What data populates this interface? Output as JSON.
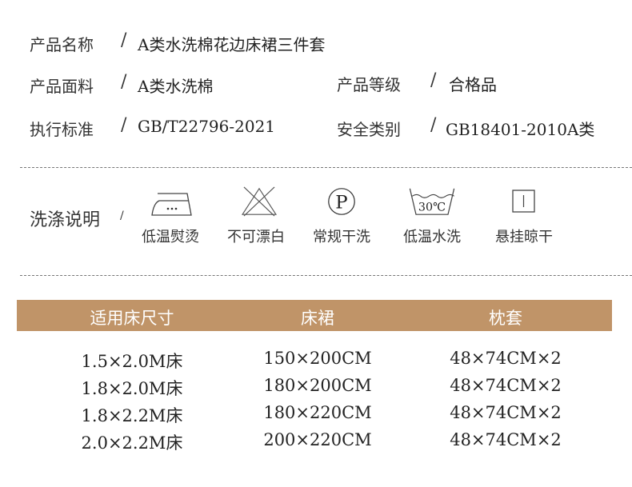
{
  "specs": [
    {
      "label": "产品名称",
      "value": "A类水洗棉花边床裙三件套"
    },
    {
      "label": "产品面料",
      "value": "A类水洗棉"
    },
    {
      "label": "产品等级",
      "value": "合格品"
    },
    {
      "label": "执行标准",
      "value": "GB/T22796-2021"
    },
    {
      "label": "安全类别",
      "value": "GB18401-2010A类"
    }
  ],
  "separator": "/",
  "care": {
    "title": "洗涤说明",
    "items": [
      {
        "icon": "iron-low-temp-icon",
        "label": "低温熨烫"
      },
      {
        "icon": "no-bleach-icon",
        "label": "不可漂白"
      },
      {
        "icon": "dry-clean-p-icon",
        "label": "常规干洗"
      },
      {
        "icon": "wash-30c-icon",
        "label": "低温水洗",
        "icon_text": "30℃"
      },
      {
        "icon": "line-dry-icon",
        "label": "悬挂晾干"
      }
    ]
  },
  "table": {
    "header_color": "#c09468",
    "headers": [
      "适用床尺寸",
      "床裙",
      "枕套"
    ],
    "rows": [
      [
        "1.5×2.0M床",
        "150×200CM",
        "48×74CM×2"
      ],
      [
        "1.8×2.0M床",
        "180×200CM",
        "48×74CM×2"
      ],
      [
        "1.8×2.2M床",
        "180×220CM",
        "48×74CM×2"
      ],
      [
        "2.0×2.2M床",
        "200×220CM",
        "48×74CM×2"
      ]
    ]
  }
}
